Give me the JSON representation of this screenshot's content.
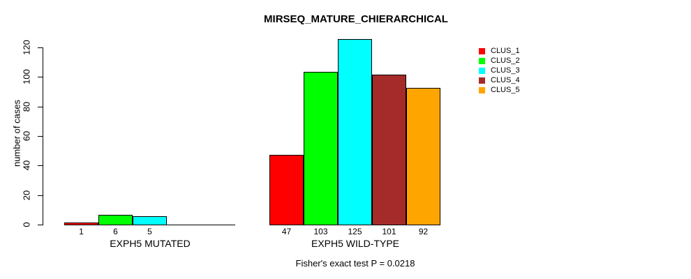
{
  "chart_data": {
    "type": "bar",
    "title": "MIRSEQ_MATURE_CHIERARCHICAL",
    "ylabel": "number of cases",
    "ylim": [
      0,
      120
    ],
    "yticks": [
      0,
      20,
      40,
      60,
      80,
      100,
      120
    ],
    "grid": false,
    "legend_position": "right",
    "series_names": [
      "CLUS_1",
      "CLUS_2",
      "CLUS_3",
      "CLUS_4",
      "CLUS_5"
    ],
    "colors": [
      "#FF0000",
      "#00FF00",
      "#00FFFF",
      "#A52A2A",
      "#FFA500"
    ],
    "groups": [
      {
        "label": "EXPH5 MUTATED",
        "values": [
          1,
          6,
          5,
          0,
          0
        ],
        "value_labels": [
          "1",
          "6",
          "5",
          "",
          ""
        ]
      },
      {
        "label": "EXPH5 WILD-TYPE",
        "values": [
          47,
          103,
          125,
          101,
          92
        ],
        "value_labels": [
          "47",
          "103",
          "125",
          "101",
          "92"
        ]
      }
    ],
    "annotation": "Fisher's exact test P = 0.0218"
  }
}
